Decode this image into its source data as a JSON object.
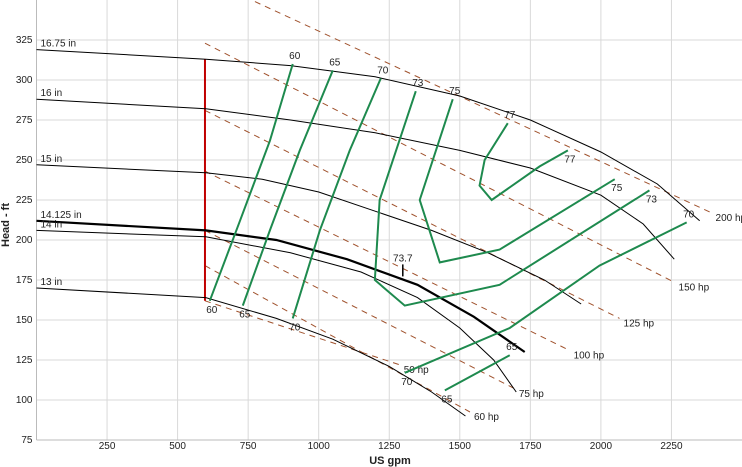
{
  "chart_data": {
    "type": "line",
    "x_label": "US gpm",
    "y_label": "Head - ft",
    "xlim": [
      0,
      2500
    ],
    "ylim": [
      75,
      350
    ],
    "xticks": [
      250,
      500,
      750,
      1000,
      1250,
      1500,
      1750,
      2000,
      2250
    ],
    "yticks": [
      75,
      100,
      125,
      150,
      175,
      200,
      225,
      250,
      275,
      300,
      325
    ],
    "grid": true,
    "series": [
      {
        "name": "16.75 in",
        "color": "#000000",
        "width": 1,
        "x": [
          0,
          600,
          900,
          1200,
          1500,
          1750,
          2000,
          2200,
          2350
        ],
        "values": [
          319,
          313,
          309,
          302,
          290,
          275,
          255,
          235,
          212
        ]
      },
      {
        "name": "16 in",
        "color": "#000000",
        "width": 1,
        "x": [
          0,
          600,
          900,
          1200,
          1500,
          1750,
          2000,
          2150,
          2260
        ],
        "values": [
          288,
          282,
          275,
          267,
          256,
          245,
          228,
          210,
          188
        ]
      },
      {
        "name": "15 in",
        "color": "#000000",
        "width": 1,
        "x": [
          0,
          600,
          800,
          1000,
          1200,
          1400,
          1600,
          1800,
          1930
        ],
        "values": [
          247,
          242,
          238,
          230,
          218,
          206,
          192,
          175,
          160
        ]
      },
      {
        "name": "14.125 in",
        "color": "#000000",
        "width": 2.2,
        "x": [
          0,
          600,
          850,
          1100,
          1350,
          1550,
          1730
        ],
        "values": [
          212,
          206,
          200,
          188,
          172,
          152,
          130
        ]
      },
      {
        "name": "14 in",
        "color": "#000000",
        "width": 1,
        "x": [
          0,
          600,
          900,
          1150,
          1350,
          1500,
          1620,
          1700
        ],
        "values": [
          206,
          202,
          192,
          180,
          164,
          145,
          125,
          105
        ]
      },
      {
        "name": "13 in",
        "color": "#000000",
        "width": 1,
        "x": [
          0,
          600,
          850,
          1050,
          1250,
          1400,
          1520
        ],
        "values": [
          170,
          164,
          151,
          138,
          121,
          105,
          90
        ]
      }
    ],
    "efficiency": [
      {
        "name": "60",
        "color": "#1e8a4e",
        "x": [
          908,
          827,
          721,
          614
        ],
        "values": [
          310,
          262,
          212,
          162
        ]
      },
      {
        "name": "65",
        "color": "#1e8a4e",
        "x": [
          1050,
          933,
          827,
          731
        ],
        "values": [
          306,
          256,
          206,
          159
        ]
      },
      {
        "name": "70",
        "color": "#1e8a4e",
        "x": [
          1220,
          1110,
          1004,
          908
        ],
        "values": [
          301,
          256,
          206,
          151
        ]
      },
      {
        "name": "73",
        "color": "#1e8a4e",
        "x": [
          1344,
          1216,
          1199,
          1305,
          1641,
          2172
        ],
        "values": [
          293,
          225,
          175,
          159,
          172,
          231
        ]
      },
      {
        "name": "75",
        "color": "#1e8a4e",
        "x": [
          1475,
          1358,
          1429,
          1641,
          2049
        ],
        "values": [
          288,
          225,
          186,
          194,
          238
        ]
      },
      {
        "name": "77",
        "color": "#1e8a4e",
        "x": [
          1670,
          1588,
          1570,
          1613,
          1783,
          1883
        ],
        "values": [
          273,
          250,
          234,
          225,
          246,
          256
        ]
      },
      {
        "name": "70",
        "color": "#1e8a4e",
        "x": [
          2304,
          1995,
          1677,
          1305
        ],
        "values": [
          211,
          184,
          145,
          117
        ]
      },
      {
        "name": "65",
        "color": "#1e8a4e",
        "x": [
          1677,
          1447
        ],
        "values": [
          128,
          106
        ]
      }
    ],
    "power": [
      {
        "name": "200 hp",
        "color": "#a0522d",
        "x": [
          774,
          2392
        ],
        "values": [
          349,
          217
        ]
      },
      {
        "name": "150 hp",
        "color": "#a0522d",
        "x": [
          597,
          2261
        ],
        "values": [
          323,
          173.5
        ]
      },
      {
        "name": "125 hp",
        "color": "#a0522d",
        "x": [
          597,
          2066
        ],
        "values": [
          281,
          151
        ]
      },
      {
        "name": "100 hp",
        "color": "#a0522d",
        "x": [
          597,
          1889
        ],
        "values": [
          243,
          131
        ]
      },
      {
        "name": "75 hp",
        "color": "#a0522d",
        "x": [
          597,
          1695
        ],
        "values": [
          206,
          107
        ]
      },
      {
        "name": "60 hp",
        "color": "#a0522d",
        "x": [
          597,
          1536
        ],
        "values": [
          184,
          92.5
        ]
      },
      {
        "name": "50 hp",
        "color": "#a0522d",
        "x": [
          597,
          1287
        ],
        "values": [
          162,
          122
        ]
      }
    ],
    "min_flow": {
      "color": "#c00000",
      "x": [
        597,
        597
      ],
      "values": [
        313,
        162
      ]
    },
    "bep": {
      "label": "73.7",
      "x": 1298,
      "value": 181
    }
  }
}
